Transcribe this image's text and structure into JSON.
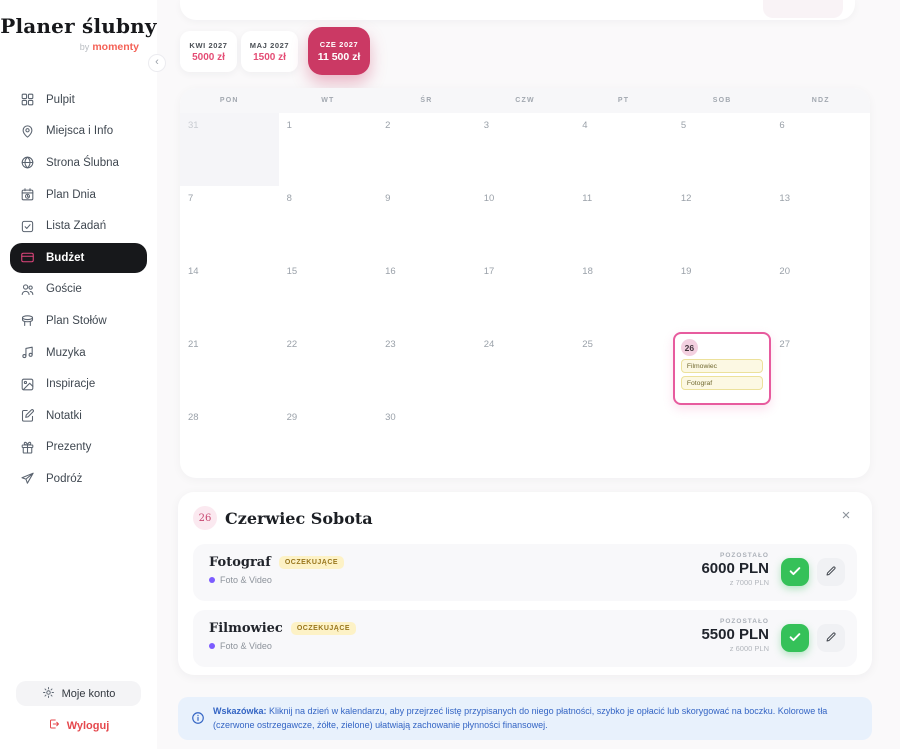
{
  "app": {
    "logo_title": "Planer ślubny",
    "logo_by": "by",
    "logo_brand": "momenty",
    "collapse_icon": "‹"
  },
  "sidebar": {
    "items": [
      {
        "label": "Pulpit",
        "icon": "dashboard-icon",
        "active": false
      },
      {
        "label": "Miejsca i Info",
        "icon": "map-pin-icon",
        "active": false
      },
      {
        "label": "Strona Ślubna",
        "icon": "globe-icon",
        "active": false
      },
      {
        "label": "Plan Dnia",
        "icon": "calendar-clock-icon",
        "active": false
      },
      {
        "label": "Lista Zadań",
        "icon": "checklist-icon",
        "active": false
      },
      {
        "label": "Budżet",
        "icon": "credit-card-icon",
        "active": true
      },
      {
        "label": "Goście",
        "icon": "people-icon",
        "active": false
      },
      {
        "label": "Plan Stołów",
        "icon": "table-icon",
        "active": false
      },
      {
        "label": "Muzyka",
        "icon": "music-icon",
        "active": false
      },
      {
        "label": "Inspiracje",
        "icon": "image-icon",
        "active": false
      },
      {
        "label": "Notatki",
        "icon": "note-icon",
        "active": false
      },
      {
        "label": "Prezenty",
        "icon": "gift-icon",
        "active": false
      },
      {
        "label": "Podróż",
        "icon": "plane-icon",
        "active": false
      }
    ],
    "account_label": "Moje konto",
    "logout_label": "Wyloguj"
  },
  "month_tabs": [
    {
      "label": "KWI 2027",
      "amount": "5000 zł",
      "active": false
    },
    {
      "label": "MAJ 2027",
      "amount": "1500 zł",
      "active": false
    },
    {
      "label": "CZE 2027",
      "amount": "11 500 zł",
      "active": true
    }
  ],
  "calendar": {
    "weekdays": [
      "PON",
      "WT",
      "ŚR",
      "CZW",
      "PT",
      "SOB",
      "NDZ"
    ],
    "weeks": [
      [
        {
          "d": "31",
          "muted": true
        },
        {
          "d": "1"
        },
        {
          "d": "2"
        },
        {
          "d": "3"
        },
        {
          "d": "4"
        },
        {
          "d": "5"
        },
        {
          "d": "6"
        }
      ],
      [
        {
          "d": "7"
        },
        {
          "d": "8"
        },
        {
          "d": "9"
        },
        {
          "d": "10"
        },
        {
          "d": "11"
        },
        {
          "d": "12"
        },
        {
          "d": "13"
        }
      ],
      [
        {
          "d": "14"
        },
        {
          "d": "15"
        },
        {
          "d": "16"
        },
        {
          "d": "17"
        },
        {
          "d": "18"
        },
        {
          "d": "19"
        },
        {
          "d": "20"
        }
      ],
      [
        {
          "d": "21"
        },
        {
          "d": "22"
        },
        {
          "d": "23"
        },
        {
          "d": "24"
        },
        {
          "d": "25"
        },
        {
          "d": "26",
          "selected": true,
          "events": [
            "Filmowiec",
            "Fotograf"
          ]
        },
        {
          "d": "27"
        }
      ],
      [
        {
          "d": "28"
        },
        {
          "d": "29"
        },
        {
          "d": "30"
        },
        {
          "d": ""
        },
        {
          "d": ""
        },
        {
          "d": ""
        },
        {
          "d": ""
        }
      ]
    ]
  },
  "detail_panel": {
    "day_badge": "26",
    "title": "Czerwiec Sobota",
    "close_icon": "×",
    "items": [
      {
        "name": "Fotograf",
        "status": "OCZEKUJĄCE",
        "category": "Foto & Video",
        "remaining_label": "POZOSTAŁO",
        "remaining": "6000 PLN",
        "of_total": "z 7000 PLN"
      },
      {
        "name": "Filmowiec",
        "status": "OCZEKUJĄCE",
        "category": "Foto & Video",
        "remaining_label": "POZOSTAŁO",
        "remaining": "5500 PLN",
        "of_total": "z 6000 PLN"
      }
    ]
  },
  "tip": {
    "label": "Wskazówka:",
    "text": " Kliknij na dzień w kalendarzu, aby przejrzeć listę przypisanych do niego płatności, szybko je opłacić lub skorygować na boczku. Kolorowe tła (czerwone ostrzegawcze, żółte, zielone) ułatwiają zachowanie płynności finansowej."
  },
  "colors": {
    "accent_pink": "#cb3964",
    "amount_pink": "#e44d75",
    "active_nav_bg": "#17181b",
    "success_green": "#35c159",
    "status_yellow_bg": "#fdf2c6",
    "tip_blue": "#3465c4",
    "logout_red": "#e5484d",
    "brand_coral": "#f46156"
  }
}
